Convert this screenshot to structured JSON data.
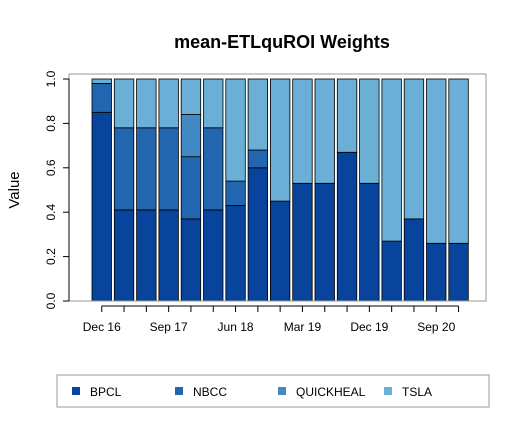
{
  "chart_data": {
    "type": "bar",
    "stacked": true,
    "title": "mean-ETLquROI Weights",
    "xlabel": "",
    "ylabel": "Value",
    "ylim": [
      0,
      1
    ],
    "yticks": [
      "0.0",
      "0.2",
      "0.4",
      "0.6",
      "0.8",
      "1.0"
    ],
    "xtick_labels": [
      "Dec 16",
      "Sep 17",
      "Jun 18",
      "Mar 19",
      "Dec 19",
      "Sep 20"
    ],
    "xtick_bar_index": [
      0,
      3,
      6,
      9,
      12,
      15
    ],
    "num_bars": 17,
    "grid": false,
    "legend_position": "bottom",
    "series": [
      {
        "name": "BPCL",
        "color": "#08449b",
        "values": [
          0.85,
          0.41,
          0.41,
          0.41,
          0.37,
          0.41,
          0.43,
          0.6,
          0.45,
          0.53,
          0.53,
          0.67,
          0.53,
          0.27,
          0.37,
          0.26,
          0.26
        ]
      },
      {
        "name": "NBCC",
        "color": "#2366b0",
        "values": [
          0.13,
          0.37,
          0.37,
          0.37,
          0.28,
          0.37,
          0.11,
          0.08,
          0.0,
          0.0,
          0.0,
          0.0,
          0.0,
          0.0,
          0.0,
          0.0,
          0.0
        ]
      },
      {
        "name": "QUICKHEAL",
        "color": "#4389c3",
        "values": [
          0.0,
          0.0,
          0.0,
          0.0,
          0.19,
          0.0,
          0.0,
          0.0,
          0.0,
          0.0,
          0.0,
          0.0,
          0.0,
          0.0,
          0.0,
          0.0,
          0.0
        ]
      },
      {
        "name": "TSLA",
        "color": "#6baed6",
        "values": [
          0.02,
          0.22,
          0.22,
          0.22,
          0.16,
          0.22,
          0.46,
          0.32,
          0.55,
          0.47,
          0.47,
          0.33,
          0.47,
          0.73,
          0.63,
          0.74,
          0.74
        ]
      }
    ]
  }
}
